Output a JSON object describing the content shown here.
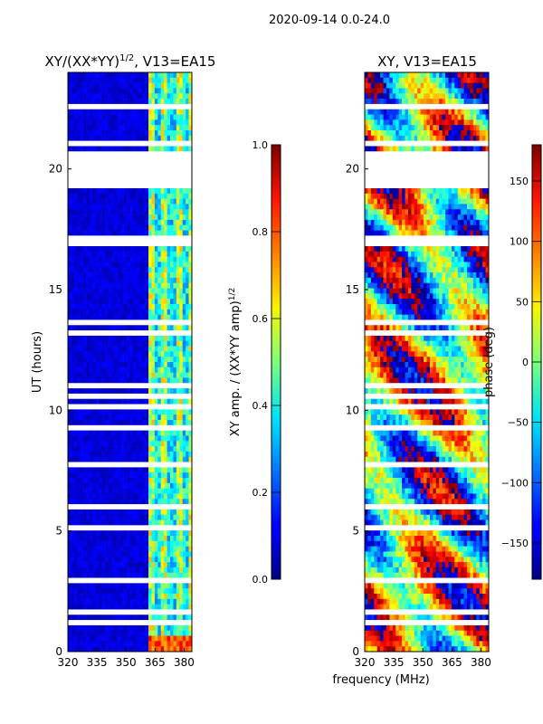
{
  "chart_data": {
    "type": "heatmap",
    "title": "2020-09-14 0.0-24.0",
    "panels": [
      {
        "kind": "amp",
        "title": "XY/(XX*YY)^{1/2}, V13=EA15",
        "title_base": "XY/(XX*YY)",
        "title_exp": "1/2",
        "title_tail": ", V13=EA15",
        "xlabel": "",
        "ylabel": "UT (hours)",
        "xlim": [
          320,
          384
        ],
        "ylim": [
          0,
          24
        ],
        "xticks": [
          320,
          335,
          350,
          365,
          380
        ],
        "yticks": [
          0,
          5,
          10,
          15,
          20
        ],
        "colorbar": {
          "label_base": "XY amp. / (XX*YY amp)",
          "label_exp": "1/2",
          "range": [
            0.0,
            1.0
          ],
          "ticks": [
            "0.0",
            "0.2",
            "0.4",
            "0.6",
            "0.8",
            "1.0"
          ],
          "tick_values": [
            0.0,
            0.2,
            0.4,
            0.6,
            0.8,
            1.0
          ],
          "colormap": "jet"
        }
      },
      {
        "kind": "phase",
        "title": "XY, V13=EA15",
        "xlabel": "frequency (MHz)",
        "ylabel": "",
        "xlim": [
          320,
          384
        ],
        "ylim": [
          0,
          24
        ],
        "xticks": [
          320,
          335,
          350,
          365,
          380
        ],
        "yticks": [
          0,
          5,
          10,
          15,
          20
        ],
        "colorbar": {
          "label": "phase (deg)",
          "range": [
            -180,
            180
          ],
          "ticks": [
            "−150",
            "−100",
            "−50",
            "0",
            "50",
            "100",
            "150"
          ],
          "tick_values": [
            -150,
            -100,
            -50,
            0,
            50,
            100,
            150
          ],
          "colormap": "jet"
        }
      }
    ]
  }
}
